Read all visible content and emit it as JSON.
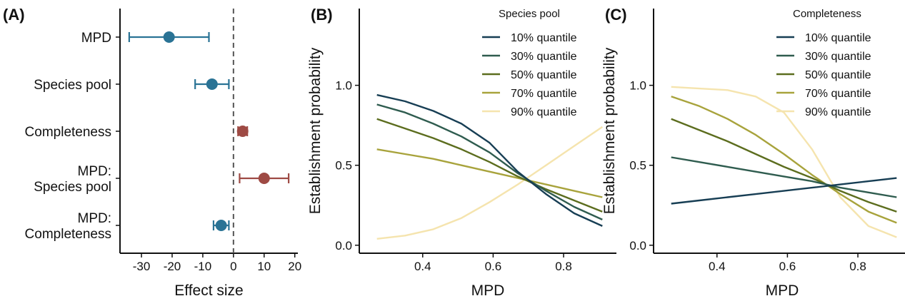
{
  "chart_data": [
    {
      "type": "scatter",
      "panel": "(A)",
      "categories": [
        [
          "MPD"
        ],
        [
          "Species pool"
        ],
        [
          "Completeness"
        ],
        [
          "MPD:",
          "Species pool"
        ],
        [
          "MPD:",
          "Completeness"
        ]
      ],
      "estimates": [
        -21,
        -7,
        3,
        10,
        -4
      ],
      "ci_low": [
        -34,
        -12.5,
        1.5,
        2,
        -6.5
      ],
      "ci_high": [
        -8,
        -1.5,
        4.5,
        18,
        -1.5
      ],
      "xlabel": "Effect size",
      "xlim": [
        -37,
        21
      ],
      "xticks": [
        -30,
        -20,
        -10,
        0,
        10,
        20
      ],
      "reference_line": 0,
      "colors": {
        "negative": "#2a7395",
        "positive": "#9e4a44"
      }
    },
    {
      "type": "line",
      "panel": "(B)",
      "xlabel": "MPD",
      "ylabel": "Establishment probability",
      "xlim": [
        0.22,
        0.95
      ],
      "ylim": [
        -0.05,
        1.48
      ],
      "xticks": [
        0.4,
        0.6,
        0.8
      ],
      "yticks": [
        "0.0",
        "0.5",
        "1.0"
      ],
      "legend_title": "Species pool",
      "legend_position": "top-right",
      "x": [
        0.27,
        0.35,
        0.43,
        0.51,
        0.59,
        0.67,
        0.75,
        0.83,
        0.91
      ],
      "series": [
        {
          "name": "10% quantile",
          "color": "#173e54",
          "values": [
            0.94,
            0.9,
            0.84,
            0.76,
            0.64,
            0.46,
            0.32,
            0.2,
            0.12
          ]
        },
        {
          "name": "30% quantile",
          "color": "#2f5c4f",
          "values": [
            0.88,
            0.83,
            0.76,
            0.68,
            0.58,
            0.45,
            0.34,
            0.24,
            0.16
          ]
        },
        {
          "name": "50% quantile",
          "color": "#5c6d1e",
          "values": [
            0.79,
            0.73,
            0.67,
            0.6,
            0.52,
            0.43,
            0.35,
            0.28,
            0.21
          ]
        },
        {
          "name": "70% quantile",
          "color": "#a8a33c",
          "values": [
            0.6,
            0.57,
            0.54,
            0.5,
            0.46,
            0.42,
            0.38,
            0.34,
            0.3
          ]
        },
        {
          "name": "90% quantile",
          "color": "#f5e4ae",
          "values": [
            0.04,
            0.06,
            0.1,
            0.17,
            0.27,
            0.38,
            0.5,
            0.62,
            0.74
          ]
        }
      ]
    },
    {
      "type": "line",
      "panel": "(C)",
      "xlabel": "MPD",
      "ylabel": "Establishment probability",
      "xlim": [
        0.22,
        0.95
      ],
      "ylim": [
        -0.05,
        1.48
      ],
      "xticks": [
        0.4,
        0.6,
        0.8
      ],
      "yticks": [
        "0.0",
        "0.5",
        "1.0"
      ],
      "legend_title": "Completeness",
      "legend_position": "top-right",
      "x": [
        0.27,
        0.35,
        0.43,
        0.51,
        0.59,
        0.67,
        0.75,
        0.83,
        0.91
      ],
      "series": [
        {
          "name": "10% quantile",
          "color": "#173e54",
          "values": [
            0.26,
            0.28,
            0.3,
            0.32,
            0.34,
            0.36,
            0.38,
            0.4,
            0.42
          ]
        },
        {
          "name": "30% quantile",
          "color": "#2f5c4f",
          "values": [
            0.55,
            0.52,
            0.49,
            0.46,
            0.43,
            0.4,
            0.36,
            0.33,
            0.3
          ]
        },
        {
          "name": "50% quantile",
          "color": "#5c6d1e",
          "values": [
            0.79,
            0.72,
            0.65,
            0.57,
            0.49,
            0.42,
            0.34,
            0.27,
            0.21
          ]
        },
        {
          "name": "70% quantile",
          "color": "#a8a33c",
          "values": [
            0.93,
            0.87,
            0.79,
            0.69,
            0.57,
            0.44,
            0.32,
            0.21,
            0.14
          ]
        },
        {
          "name": "90% quantile",
          "color": "#f5e4ae",
          "values": [
            0.99,
            0.98,
            0.97,
            0.93,
            0.83,
            0.6,
            0.3,
            0.12,
            0.05
          ]
        }
      ]
    }
  ]
}
